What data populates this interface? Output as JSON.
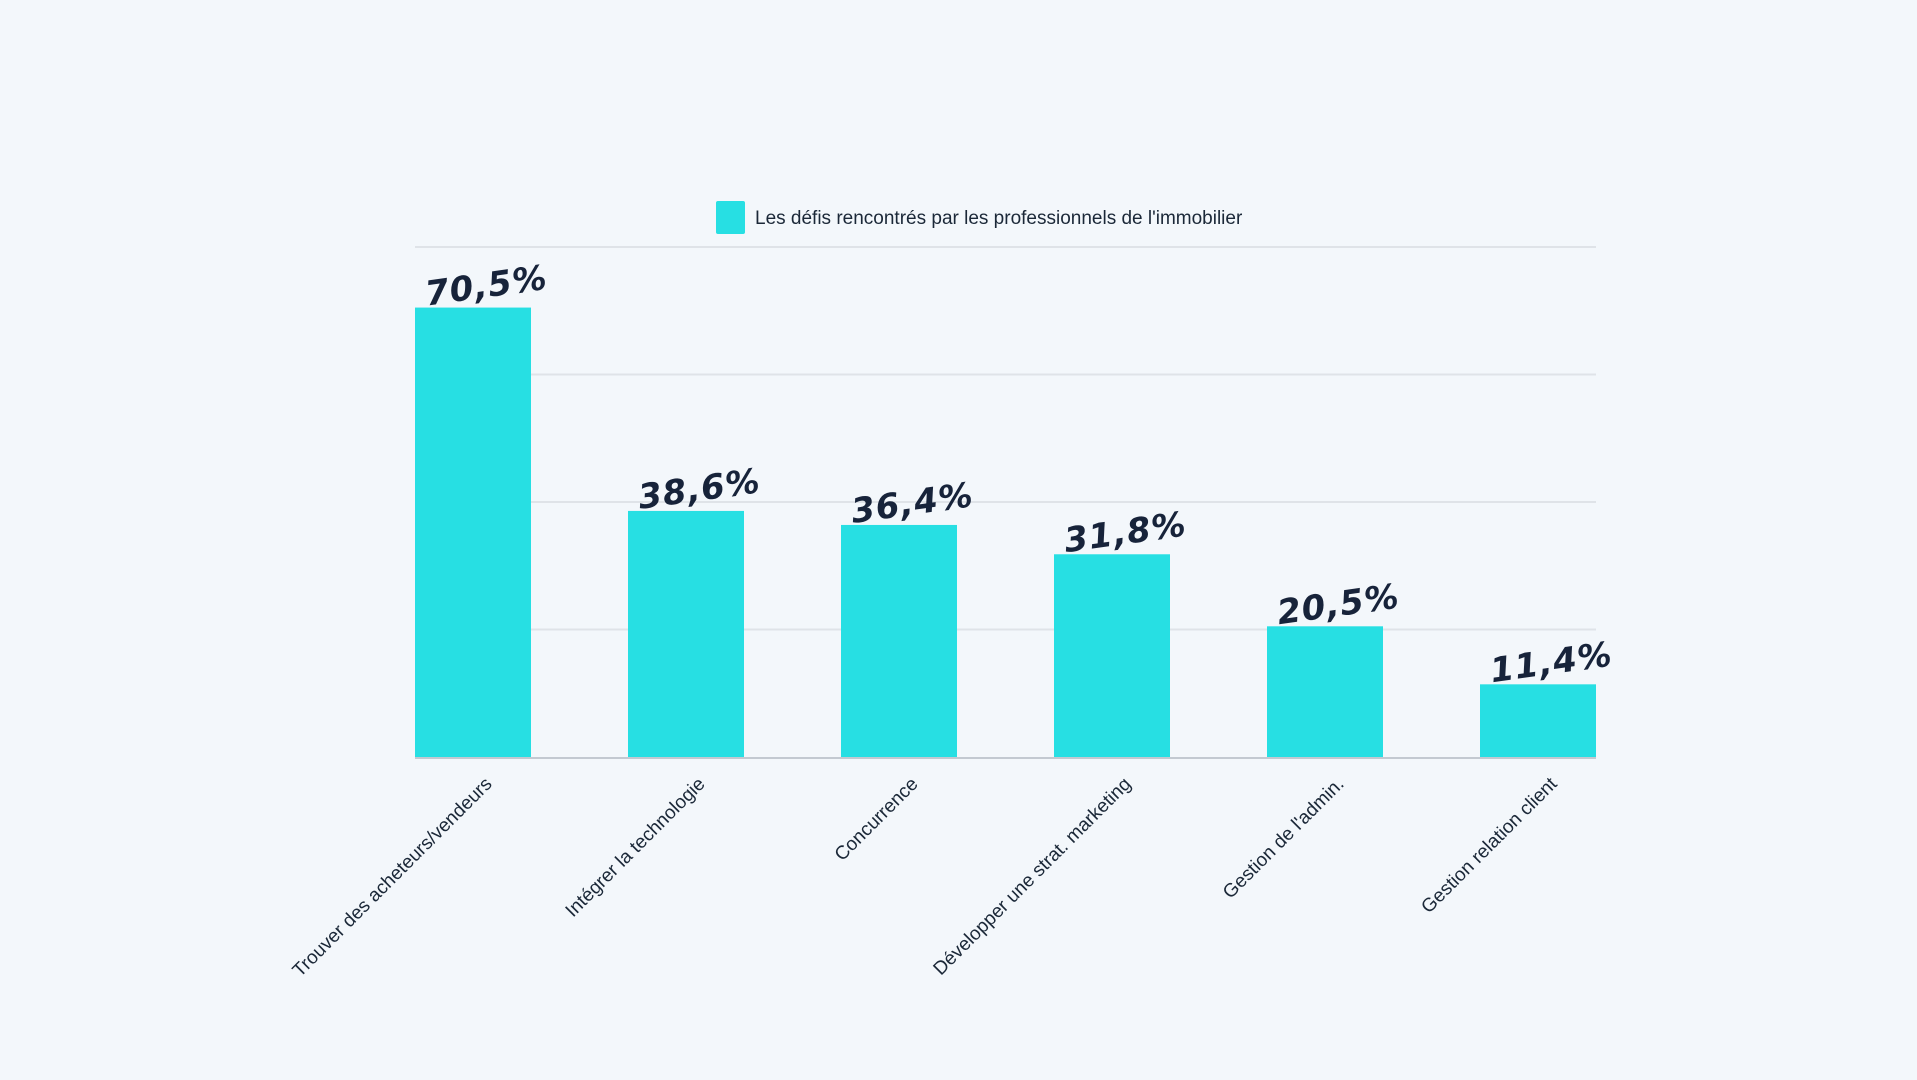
{
  "chart_data": {
    "type": "bar",
    "title": "",
    "xlabel": "",
    "ylabel": "",
    "ylim": [
      0,
      80
    ],
    "yticks": [
      0,
      20,
      40,
      60,
      80
    ],
    "grid": true,
    "legend": {
      "position": "top-center",
      "entries": [
        "Les défis rencontrés par les professionnels de l'immobilier"
      ]
    },
    "categories": [
      "Trouver des acheteurs/vendeurs",
      "Intégrer la technologie",
      "Concurrence",
      "Développer une strat. marketing",
      "Gestion de l'admin.",
      "Gestion relation client"
    ],
    "series": [
      {
        "name": "Les défis rencontrés par les professionnels de l'immobilier",
        "values": [
          70.5,
          38.6,
          36.4,
          31.8,
          20.5,
          11.4
        ],
        "labels": [
          "70,5%",
          "38,6%",
          "36,4%",
          "31,8%",
          "20,5%",
          "11,4%"
        ],
        "color": "#27dfe3"
      }
    ]
  },
  "colors": {
    "background": "#f3f7fb",
    "grid": "#dfe3e8",
    "axis": "#c3c9d1",
    "text": "#1b2838",
    "bar": "#27dfe3"
  }
}
